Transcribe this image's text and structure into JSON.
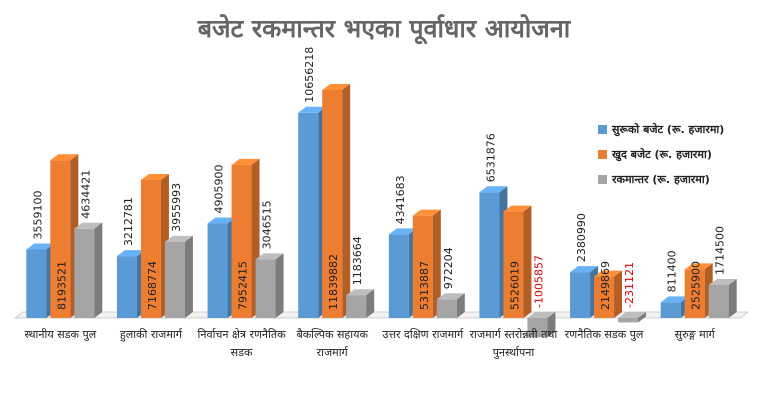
{
  "chart_data": {
    "type": "bar3d",
    "title": "बजेट रकमान्तर भएका पूर्वाधार आयोजना",
    "categories": [
      "स्थानीय सडक पुल",
      "हुलाकी राजमार्ग",
      "निर्वाचन क्षेत्र रणनैतिक सडक",
      "बैकल्पिक सहायक राजमार्ग",
      "उत्तर दक्षिण राजमार्ग",
      "राजमार्ग स्तरोन्नती तथा पुनर्स्थापना",
      "रणनैतिक सडक पुल",
      "सुरुङ्ग मार्ग"
    ],
    "series": [
      {
        "name": "सुरूको बजेट (रू. हजारमा)",
        "color": "#5b9bd5",
        "values": [
          3559100,
          3212781,
          4905900,
          10656218,
          4341683,
          6531876,
          2380990,
          811400
        ]
      },
      {
        "name": "खुद बजेट (रू. हजारमा)",
        "color": "#ed7d31",
        "values": [
          8193521,
          7168774,
          7952415,
          11839882,
          5313887,
          5526019,
          2149869,
          2525900
        ]
      },
      {
        "name": "रकमान्तर (रू. हजारमा)",
        "color": "#a5a5a5",
        "values": [
          4634421,
          3955993,
          3046515,
          1183664,
          972204,
          -1005857,
          -231121,
          1714500
        ]
      }
    ],
    "legend": "right"
  }
}
